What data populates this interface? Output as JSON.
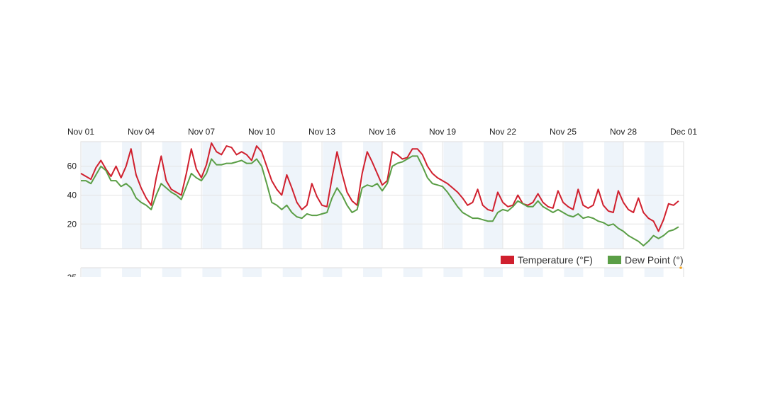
{
  "chart_data": {
    "type": "line",
    "x_ticks": [
      "Nov 01",
      "Nov 04",
      "Nov 07",
      "Nov 10",
      "Nov 13",
      "Nov 16",
      "Nov 19",
      "Nov 22",
      "Nov 25",
      "Nov 28",
      "Dec 01"
    ],
    "x_tick_days": [
      0,
      3,
      6,
      9,
      12,
      15,
      18,
      21,
      24,
      27,
      30
    ],
    "y_ticks": [
      20,
      40,
      60
    ],
    "ylim": [
      3,
      77
    ],
    "xlim_days": [
      0,
      30
    ],
    "grid": true,
    "legend_position": "bottom-right",
    "lower_panel_visible_tick": "25",
    "series": [
      {
        "name": "Temperature (°F)",
        "color": "#d0202e",
        "points": [
          [
            0,
            55
          ],
          [
            0.25,
            53
          ],
          [
            0.5,
            51
          ],
          [
            0.75,
            59
          ],
          [
            1.0,
            64
          ],
          [
            1.25,
            58
          ],
          [
            1.5,
            53
          ],
          [
            1.75,
            60
          ],
          [
            2.0,
            52
          ],
          [
            2.25,
            60
          ],
          [
            2.5,
            72
          ],
          [
            2.75,
            54
          ],
          [
            3.0,
            45
          ],
          [
            3.25,
            38
          ],
          [
            3.5,
            33
          ],
          [
            3.75,
            52
          ],
          [
            4.0,
            67
          ],
          [
            4.25,
            50
          ],
          [
            4.5,
            44
          ],
          [
            4.75,
            42
          ],
          [
            5.0,
            40
          ],
          [
            5.25,
            55
          ],
          [
            5.5,
            72
          ],
          [
            5.75,
            58
          ],
          [
            6.0,
            52
          ],
          [
            6.25,
            61
          ],
          [
            6.5,
            76
          ],
          [
            6.75,
            70
          ],
          [
            7.0,
            68
          ],
          [
            7.25,
            74
          ],
          [
            7.5,
            73
          ],
          [
            7.75,
            68
          ],
          [
            8.0,
            70
          ],
          [
            8.25,
            68
          ],
          [
            8.5,
            64
          ],
          [
            8.75,
            74
          ],
          [
            9.0,
            70
          ],
          [
            9.25,
            60
          ],
          [
            9.5,
            50
          ],
          [
            9.75,
            44
          ],
          [
            10.0,
            40
          ],
          [
            10.25,
            54
          ],
          [
            10.5,
            45
          ],
          [
            10.75,
            35
          ],
          [
            11.0,
            30
          ],
          [
            11.25,
            33
          ],
          [
            11.5,
            48
          ],
          [
            11.75,
            39
          ],
          [
            12.0,
            33
          ],
          [
            12.25,
            32
          ],
          [
            12.5,
            52
          ],
          [
            12.75,
            70
          ],
          [
            13.0,
            55
          ],
          [
            13.25,
            42
          ],
          [
            13.5,
            36
          ],
          [
            13.75,
            33
          ],
          [
            14.0,
            55
          ],
          [
            14.25,
            70
          ],
          [
            14.5,
            63
          ],
          [
            14.75,
            55
          ],
          [
            15.0,
            47
          ],
          [
            15.25,
            50
          ],
          [
            15.5,
            70
          ],
          [
            15.75,
            68
          ],
          [
            16.0,
            65
          ],
          [
            16.25,
            66
          ],
          [
            16.5,
            72
          ],
          [
            16.75,
            72
          ],
          [
            17.0,
            68
          ],
          [
            17.25,
            60
          ],
          [
            17.5,
            55
          ],
          [
            17.75,
            52
          ],
          [
            18.0,
            50
          ],
          [
            18.25,
            48
          ],
          [
            18.5,
            45
          ],
          [
            18.75,
            42
          ],
          [
            19.0,
            38
          ],
          [
            19.25,
            33
          ],
          [
            19.5,
            35
          ],
          [
            19.75,
            44
          ],
          [
            20.0,
            33
          ],
          [
            20.25,
            30
          ],
          [
            20.5,
            29
          ],
          [
            20.75,
            42
          ],
          [
            21.0,
            35
          ],
          [
            21.25,
            32
          ],
          [
            21.5,
            33
          ],
          [
            21.75,
            40
          ],
          [
            22.0,
            34
          ],
          [
            22.25,
            33
          ],
          [
            22.5,
            35
          ],
          [
            22.75,
            41
          ],
          [
            23.0,
            35
          ],
          [
            23.25,
            32
          ],
          [
            23.5,
            31
          ],
          [
            23.75,
            43
          ],
          [
            24.0,
            35
          ],
          [
            24.25,
            32
          ],
          [
            24.5,
            30
          ],
          [
            24.75,
            44
          ],
          [
            25.0,
            33
          ],
          [
            25.25,
            31
          ],
          [
            25.5,
            33
          ],
          [
            25.75,
            44
          ],
          [
            26.0,
            33
          ],
          [
            26.25,
            29
          ],
          [
            26.5,
            28
          ],
          [
            26.75,
            43
          ],
          [
            27.0,
            35
          ],
          [
            27.25,
            30
          ],
          [
            27.5,
            28
          ],
          [
            27.75,
            38
          ],
          [
            28.0,
            28
          ],
          [
            28.25,
            24
          ],
          [
            28.5,
            22
          ],
          [
            28.75,
            15
          ],
          [
            29.0,
            23
          ],
          [
            29.25,
            34
          ],
          [
            29.5,
            33
          ],
          [
            29.75,
            36
          ]
        ]
      },
      {
        "name": "Dew Point (°)",
        "color": "#5a9e46",
        "points": [
          [
            0,
            50
          ],
          [
            0.25,
            50
          ],
          [
            0.5,
            48
          ],
          [
            0.75,
            54
          ],
          [
            1.0,
            60
          ],
          [
            1.25,
            57
          ],
          [
            1.5,
            50
          ],
          [
            1.75,
            50
          ],
          [
            2.0,
            46
          ],
          [
            2.25,
            48
          ],
          [
            2.5,
            45
          ],
          [
            2.75,
            38
          ],
          [
            3.0,
            35
          ],
          [
            3.25,
            33
          ],
          [
            3.5,
            30
          ],
          [
            3.75,
            40
          ],
          [
            4.0,
            48
          ],
          [
            4.25,
            45
          ],
          [
            4.5,
            42
          ],
          [
            4.75,
            40
          ],
          [
            5.0,
            37
          ],
          [
            5.25,
            46
          ],
          [
            5.5,
            55
          ],
          [
            5.75,
            52
          ],
          [
            6.0,
            50
          ],
          [
            6.25,
            55
          ],
          [
            6.5,
            65
          ],
          [
            6.75,
            61
          ],
          [
            7.0,
            61
          ],
          [
            7.25,
            62
          ],
          [
            7.5,
            62
          ],
          [
            7.75,
            63
          ],
          [
            8.0,
            64
          ],
          [
            8.25,
            62
          ],
          [
            8.5,
            62
          ],
          [
            8.75,
            65
          ],
          [
            9.0,
            60
          ],
          [
            9.25,
            48
          ],
          [
            9.5,
            35
          ],
          [
            9.75,
            33
          ],
          [
            10.0,
            30
          ],
          [
            10.25,
            33
          ],
          [
            10.5,
            28
          ],
          [
            10.75,
            25
          ],
          [
            11.0,
            24
          ],
          [
            11.25,
            27
          ],
          [
            11.5,
            26
          ],
          [
            11.75,
            26
          ],
          [
            12.0,
            27
          ],
          [
            12.25,
            28
          ],
          [
            12.5,
            38
          ],
          [
            12.75,
            45
          ],
          [
            13.0,
            40
          ],
          [
            13.25,
            33
          ],
          [
            13.5,
            28
          ],
          [
            13.75,
            30
          ],
          [
            14.0,
            45
          ],
          [
            14.25,
            47
          ],
          [
            14.5,
            46
          ],
          [
            14.75,
            48
          ],
          [
            15.0,
            43
          ],
          [
            15.25,
            48
          ],
          [
            15.5,
            60
          ],
          [
            15.75,
            62
          ],
          [
            16.0,
            63
          ],
          [
            16.25,
            65
          ],
          [
            16.5,
            67
          ],
          [
            16.75,
            67
          ],
          [
            17.0,
            60
          ],
          [
            17.25,
            52
          ],
          [
            17.5,
            48
          ],
          [
            17.75,
            47
          ],
          [
            18.0,
            46
          ],
          [
            18.25,
            42
          ],
          [
            18.5,
            37
          ],
          [
            18.75,
            32
          ],
          [
            19.0,
            28
          ],
          [
            19.25,
            26
          ],
          [
            19.5,
            24
          ],
          [
            19.75,
            24
          ],
          [
            20.0,
            23
          ],
          [
            20.25,
            22
          ],
          [
            20.5,
            22
          ],
          [
            20.75,
            28
          ],
          [
            21.0,
            30
          ],
          [
            21.25,
            29
          ],
          [
            21.5,
            32
          ],
          [
            21.75,
            36
          ],
          [
            22.0,
            34
          ],
          [
            22.25,
            32
          ],
          [
            22.5,
            32
          ],
          [
            22.75,
            36
          ],
          [
            23.0,
            32
          ],
          [
            23.25,
            30
          ],
          [
            23.5,
            28
          ],
          [
            23.75,
            30
          ],
          [
            24.0,
            28
          ],
          [
            24.25,
            26
          ],
          [
            24.5,
            25
          ],
          [
            24.75,
            27
          ],
          [
            25.0,
            24
          ],
          [
            25.25,
            25
          ],
          [
            25.5,
            24
          ],
          [
            25.75,
            22
          ],
          [
            26.0,
            21
          ],
          [
            26.25,
            19
          ],
          [
            26.5,
            20
          ],
          [
            26.75,
            17
          ],
          [
            27.0,
            15
          ],
          [
            27.25,
            12
          ],
          [
            27.5,
            10
          ],
          [
            27.75,
            8
          ],
          [
            28.0,
            5
          ],
          [
            28.25,
            8
          ],
          [
            28.5,
            12
          ],
          [
            28.75,
            10
          ],
          [
            29.0,
            12
          ],
          [
            29.25,
            15
          ],
          [
            29.5,
            16
          ],
          [
            29.75,
            18
          ]
        ]
      }
    ]
  }
}
